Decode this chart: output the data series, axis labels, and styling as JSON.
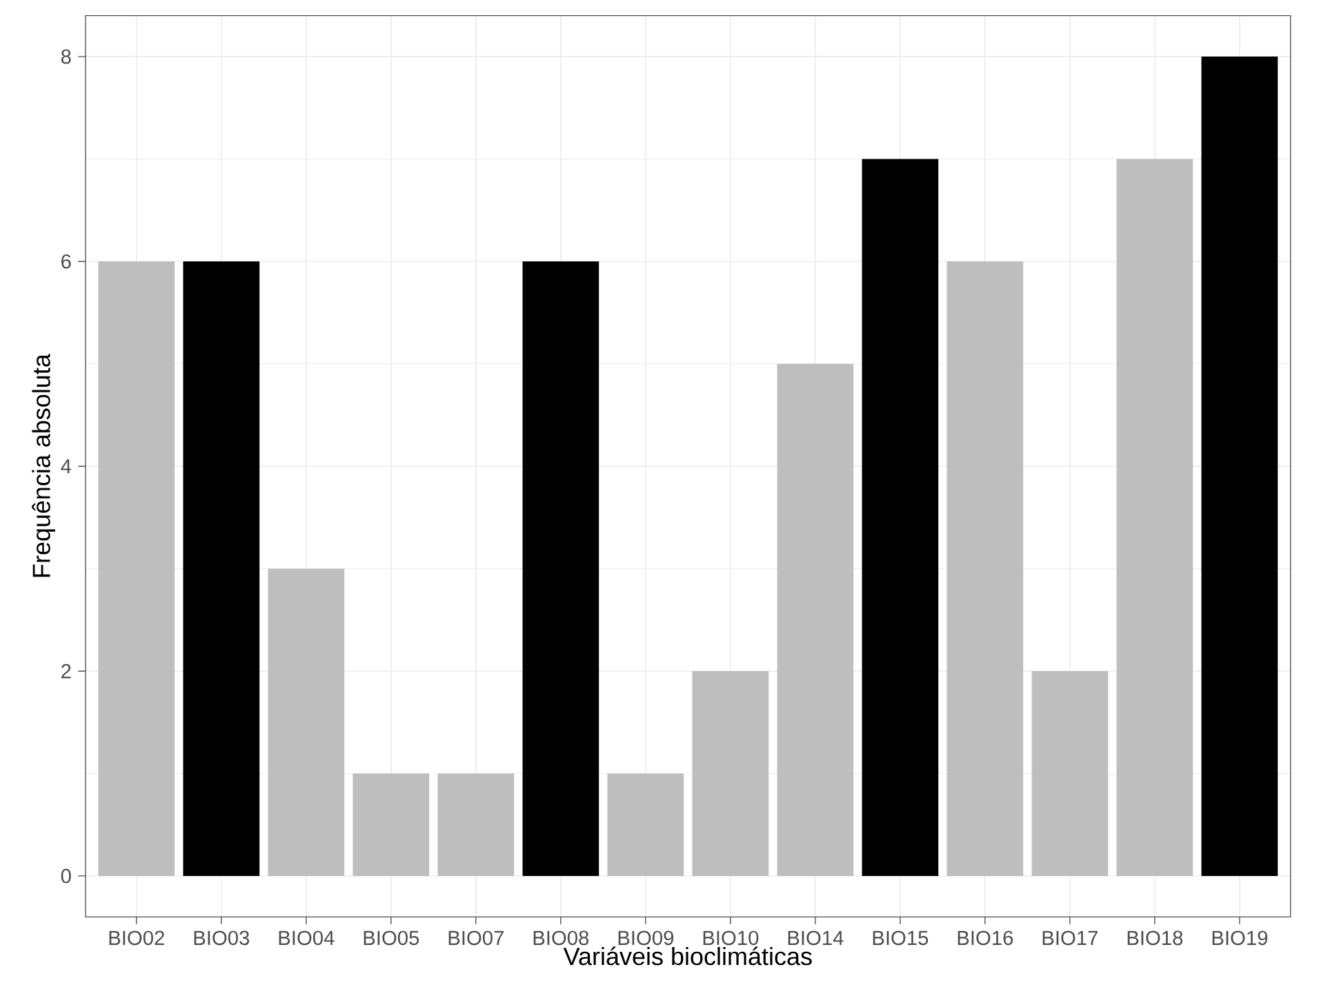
{
  "chart_data": {
    "type": "bar",
    "xlabel": "Variáveis bioclimáticas",
    "ylabel": "Frequência absoluta",
    "categories": [
      "BIO02",
      "BIO03",
      "BIO04",
      "BIO05",
      "BIO07",
      "BIO08",
      "BIO09",
      "BIO10",
      "BIO14",
      "BIO15",
      "BIO16",
      "BIO17",
      "BIO18",
      "BIO19"
    ],
    "values": [
      6,
      6,
      3,
      1,
      1,
      6,
      1,
      2,
      5,
      7,
      6,
      2,
      7,
      8
    ],
    "colors": [
      "#bebebe",
      "#000000",
      "#bebebe",
      "#bebebe",
      "#bebebe",
      "#000000",
      "#bebebe",
      "#bebebe",
      "#bebebe",
      "#000000",
      "#bebebe",
      "#bebebe",
      "#bebebe",
      "#000000"
    ],
    "ylim": [
      -0.4,
      8.4
    ],
    "yticks": [
      0,
      2,
      4,
      6,
      8
    ],
    "grid": true
  }
}
